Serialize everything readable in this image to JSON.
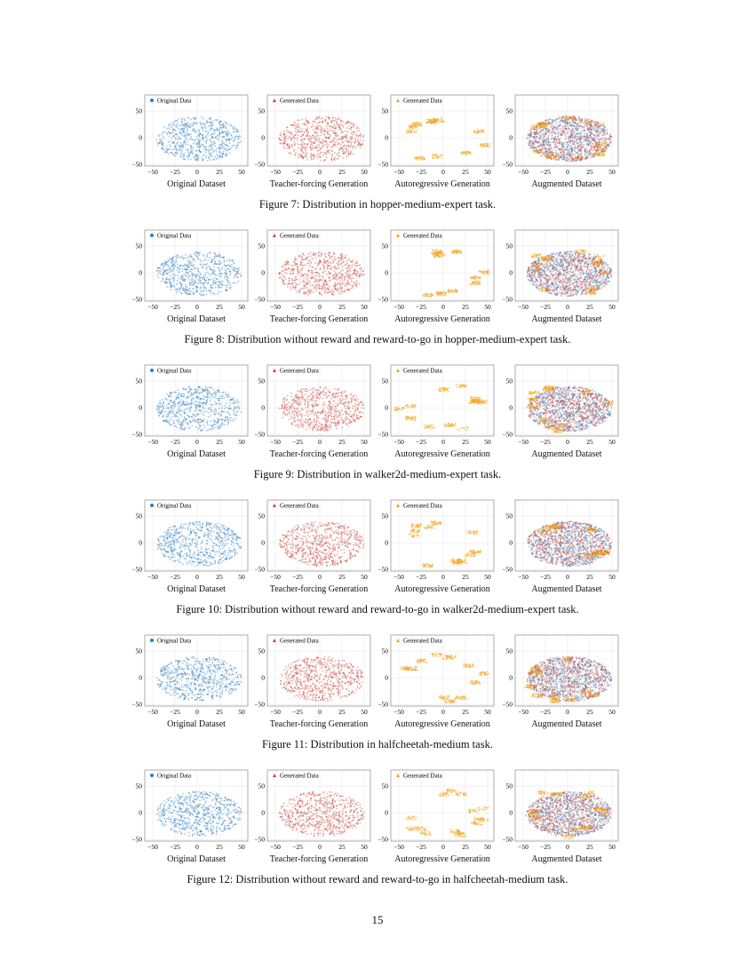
{
  "colors": {
    "original": "#2f7fc0",
    "teacher": "#c8463c",
    "autoregressive": "#f4a41c",
    "grid": "#e6e6e6",
    "frame": "#9a9a9a"
  },
  "chart_data": [
    {
      "caption": "Figure 7: Distribution in hopper-medium-expert task.",
      "panels": [
        {
          "type": "scatter",
          "xlabel": "Original Dataset",
          "legend": "Original Data",
          "series": [
            "original"
          ],
          "marker": "circle-icon"
        },
        {
          "type": "scatter",
          "xlabel": "Teacher-forcing Generation",
          "legend": "Generated Data",
          "series": [
            "teacher"
          ],
          "marker": "triangle-icon"
        },
        {
          "type": "scatter",
          "xlabel": "Autoregressive Generation",
          "legend": "Generated Data",
          "series": [
            "autoregressive"
          ],
          "marker": "triangle-icon"
        },
        {
          "type": "scatter",
          "xlabel": "Augmented Dataset",
          "legend": "",
          "series": [
            "original",
            "teacher",
            "autoregressive"
          ]
        }
      ]
    },
    {
      "caption": "Figure 8: Distribution without reward and reward-to-go in hopper-medium-expert task.",
      "panels": [
        {
          "type": "scatter",
          "xlabel": "Original Dataset",
          "legend": "Original Data",
          "series": [
            "original"
          ],
          "marker": "circle-icon"
        },
        {
          "type": "scatter",
          "xlabel": "Teacher-forcing Generation",
          "legend": "Generated Data",
          "series": [
            "teacher"
          ],
          "marker": "triangle-icon"
        },
        {
          "type": "scatter",
          "xlabel": "Autoregressive Generation",
          "legend": "Generated Data",
          "series": [
            "autoregressive"
          ],
          "marker": "triangle-icon"
        },
        {
          "type": "scatter",
          "xlabel": "Augmented Dataset",
          "legend": "",
          "series": [
            "original",
            "teacher",
            "autoregressive"
          ]
        }
      ]
    },
    {
      "caption": "Figure 9: Distribution in walker2d-medium-expert task.",
      "panels": [
        {
          "type": "scatter",
          "xlabel": "Original Dataset",
          "legend": "Original Data",
          "series": [
            "original"
          ],
          "marker": "circle-icon"
        },
        {
          "type": "scatter",
          "xlabel": "Teacher-forcing Generation",
          "legend": "Generated Data",
          "series": [
            "teacher"
          ],
          "marker": "triangle-icon"
        },
        {
          "type": "scatter",
          "xlabel": "Autoregressive Generation",
          "legend": "Generated Data",
          "series": [
            "autoregressive"
          ],
          "marker": "triangle-icon"
        },
        {
          "type": "scatter",
          "xlabel": "Augmented Dataset",
          "legend": "",
          "series": [
            "original",
            "teacher",
            "autoregressive"
          ]
        }
      ]
    },
    {
      "caption": "Figure 10: Distribution without reward and reward-to-go in walker2d-medium-expert task.",
      "panels": [
        {
          "type": "scatter",
          "xlabel": "Original Dataset",
          "legend": "Original Data",
          "series": [
            "original"
          ],
          "marker": "circle-icon"
        },
        {
          "type": "scatter",
          "xlabel": "Teacher-forcing Generation",
          "legend": "Generated Data",
          "series": [
            "teacher"
          ],
          "marker": "triangle-icon"
        },
        {
          "type": "scatter",
          "xlabel": "Autoregressive Generation",
          "legend": "Generated Data",
          "series": [
            "autoregressive"
          ],
          "marker": "triangle-icon"
        },
        {
          "type": "scatter",
          "xlabel": "Augmented Dataset",
          "legend": "",
          "series": [
            "original",
            "teacher",
            "autoregressive"
          ]
        }
      ]
    },
    {
      "caption": "Figure 11: Distribution in halfcheetah-medium task.",
      "panels": [
        {
          "type": "scatter",
          "xlabel": "Original Dataset",
          "legend": "Original Data",
          "series": [
            "original"
          ],
          "marker": "circle-icon"
        },
        {
          "type": "scatter",
          "xlabel": "Teacher-forcing Generation",
          "legend": "Generated Data",
          "series": [
            "teacher"
          ],
          "marker": "triangle-icon"
        },
        {
          "type": "scatter",
          "xlabel": "Autoregressive Generation",
          "legend": "Generated Data",
          "series": [
            "autoregressive"
          ],
          "marker": "triangle-icon"
        },
        {
          "type": "scatter",
          "xlabel": "Augmented Dataset",
          "legend": "",
          "series": [
            "original",
            "teacher",
            "autoregressive"
          ]
        }
      ]
    },
    {
      "caption": "Figure 12: Distribution without reward and reward-to-go in halfcheetah-medium task.",
      "panels": [
        {
          "type": "scatter",
          "xlabel": "Original Dataset",
          "legend": "Original Data",
          "series": [
            "original"
          ],
          "marker": "circle-icon"
        },
        {
          "type": "scatter",
          "xlabel": "Teacher-forcing Generation",
          "legend": "Generated Data",
          "series": [
            "teacher"
          ],
          "marker": "triangle-icon"
        },
        {
          "type": "scatter",
          "xlabel": "Autoregressive Generation",
          "legend": "Generated Data",
          "series": [
            "autoregressive"
          ],
          "marker": "triangle-icon"
        },
        {
          "type": "scatter",
          "xlabel": "Augmented Dataset",
          "legend": "",
          "series": [
            "original",
            "teacher",
            "autoregressive"
          ]
        }
      ]
    }
  ],
  "axes": {
    "xlim": [
      -59,
      57
    ],
    "ylim": [
      -53,
      80
    ],
    "xticks": [
      "−50",
      "−25",
      "0",
      "25",
      "50"
    ],
    "xtick_values": [
      -50,
      -25,
      0,
      25,
      50
    ],
    "yticks": [
      "50",
      "0",
      "−50"
    ],
    "ytick_values": [
      50,
      0,
      -50
    ],
    "grid": true
  },
  "page_number": "15"
}
